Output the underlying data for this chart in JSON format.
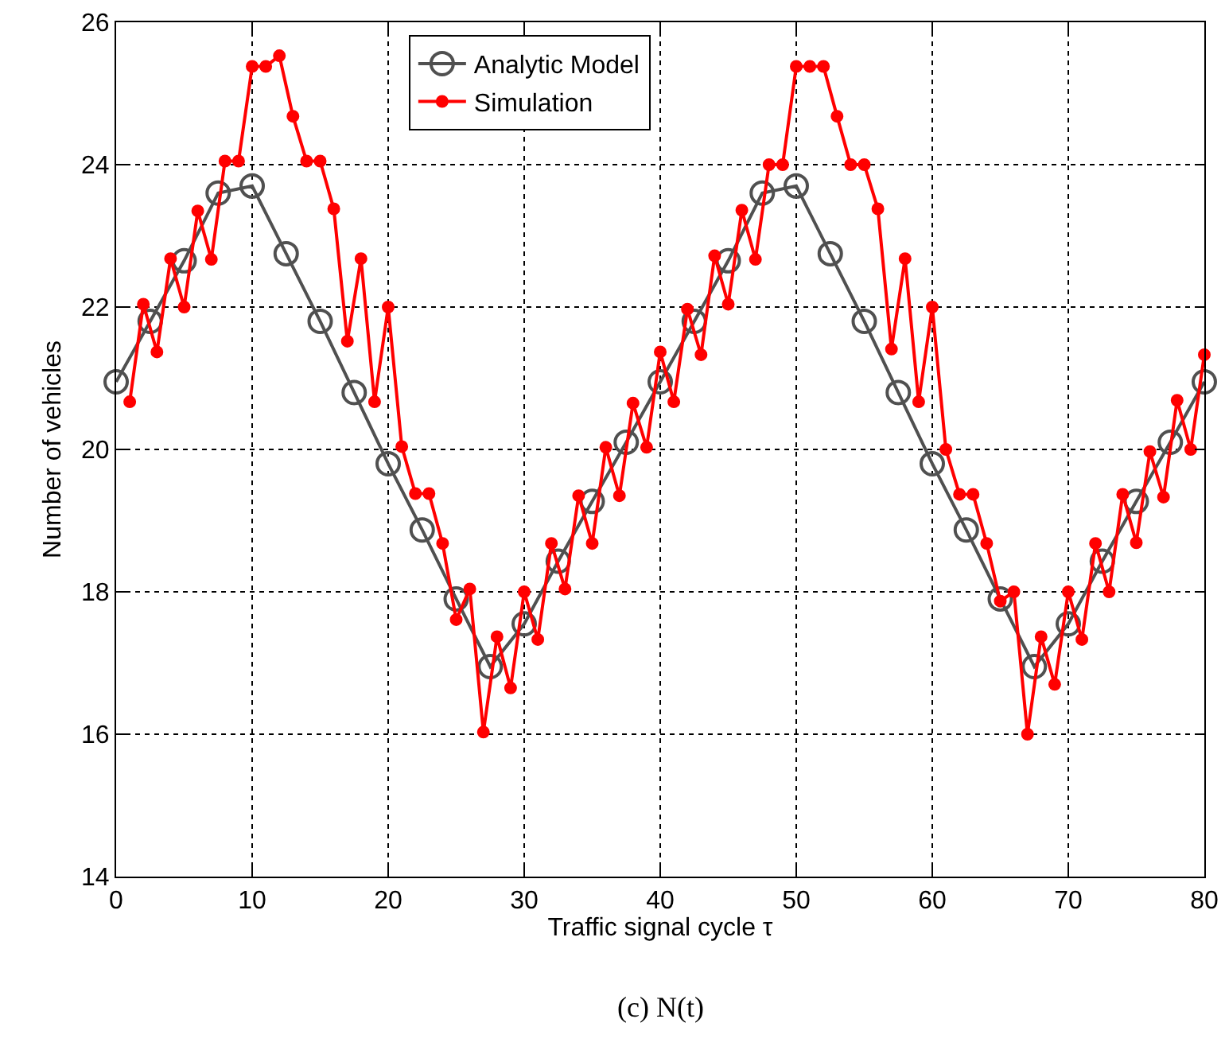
{
  "chart_data": {
    "type": "line",
    "xlabel": "Traffic signal cycle τ",
    "ylabel": "Number of vehicles",
    "annotations": [
      "(c) N(t)"
    ],
    "xlim": [
      0,
      80
    ],
    "xticks": [
      0,
      10,
      20,
      30,
      40,
      50,
      60,
      70,
      80
    ],
    "ylim": [
      14,
      26
    ],
    "yticks": [
      14,
      16,
      18,
      20,
      22,
      24,
      26
    ],
    "grid": true,
    "legend": "top",
    "line_style": "solid",
    "series": [
      {
        "name": "Analytic Model",
        "color": "#505050",
        "marker": "circle",
        "x": [
          0,
          2.5,
          5,
          7.5,
          10,
          12.5,
          15,
          17.5,
          20,
          22.5,
          25,
          27.5,
          30,
          32.5,
          35,
          37.5,
          40,
          42.5,
          45,
          47.5,
          50,
          52.5,
          55,
          57.5,
          60,
          62.5,
          65,
          67.5,
          70,
          72.5,
          75,
          77.5,
          80
        ],
        "values": [
          20.95,
          21.8,
          22.65,
          23.6,
          23.7,
          22.75,
          21.8,
          20.8,
          19.8,
          18.87,
          17.9,
          16.95,
          17.55,
          18.43,
          19.27,
          20.1,
          20.95,
          21.8,
          22.65,
          23.6,
          23.7,
          22.75,
          21.8,
          20.8,
          19.8,
          18.87,
          17.9,
          16.95,
          17.55,
          18.43,
          19.27,
          20.1,
          20.95
        ]
      },
      {
        "name": "Simulation",
        "color": "#ff0000",
        "marker": "circle",
        "x": [
          1,
          2,
          3,
          4,
          5,
          6,
          7,
          8,
          9,
          10,
          11,
          12,
          13,
          14,
          15,
          16,
          17,
          18,
          19,
          20,
          21,
          22,
          23,
          24,
          25,
          26,
          27,
          28,
          29,
          30,
          31,
          32,
          33,
          34,
          35,
          36,
          37,
          38,
          39,
          40,
          41,
          42,
          43,
          44,
          45,
          46,
          47,
          48,
          49,
          50,
          51,
          52,
          53,
          54,
          55,
          56,
          57,
          58,
          59,
          60,
          61,
          62,
          63,
          64,
          65,
          66,
          67,
          68,
          69,
          70,
          71,
          72,
          73,
          74,
          75,
          76,
          77,
          78,
          79,
          80
        ],
        "values": [
          20.67,
          22.04,
          21.37,
          22.68,
          22.0,
          23.35,
          22.67,
          24.05,
          24.05,
          25.38,
          25.38,
          25.53,
          24.68,
          24.05,
          24.05,
          23.38,
          21.52,
          22.68,
          20.67,
          22.0,
          20.04,
          19.38,
          19.38,
          18.68,
          17.61,
          18.04,
          16.03,
          17.37,
          16.65,
          18.0,
          17.33,
          18.68,
          18.04,
          19.35,
          18.68,
          20.03,
          19.35,
          20.65,
          20.03,
          21.37,
          20.67,
          21.97,
          21.33,
          22.72,
          22.04,
          23.36,
          22.67,
          24.0,
          24.0,
          25.38,
          25.38,
          25.38,
          24.68,
          24.0,
          24.0,
          23.38,
          21.41,
          22.68,
          20.67,
          22.0,
          20.0,
          19.37,
          19.37,
          18.68,
          17.87,
          18.0,
          16.0,
          17.37,
          16.7,
          18.0,
          17.33,
          18.68,
          18.0,
          19.37,
          18.69,
          19.97,
          19.33,
          20.69,
          20.0,
          21.33
        ]
      }
    ]
  }
}
